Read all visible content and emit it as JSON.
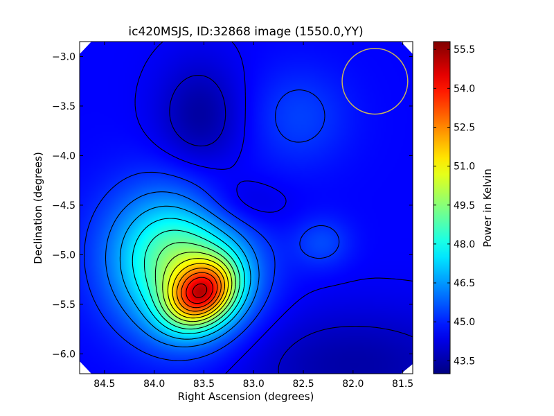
{
  "chart_data": {
    "type": "heatmap",
    "title": "ic420MSJS, ID:32868 image (1550.0,YY)",
    "xlabel": "Right Ascension (degrees)",
    "ylabel": "Declination (degrees)",
    "colorbar_label": "Power in Kelvin",
    "colormap": "jet",
    "xlim": [
      84.75,
      81.4
    ],
    "ylim": [
      -6.2,
      -2.85
    ],
    "x_ticks": [
      84.5,
      84.0,
      83.5,
      83.0,
      82.5,
      82.0,
      81.5
    ],
    "x_tick_labels": [
      "84.5",
      "84.0",
      "83.5",
      "83.0",
      "82.5",
      "82.0",
      "81.5"
    ],
    "y_ticks": [
      -3.0,
      -3.5,
      -4.0,
      -4.5,
      -5.0,
      -5.5,
      -6.0
    ],
    "y_tick_labels": [
      "−3.0",
      "−3.5",
      "−4.0",
      "−4.5",
      "−5.0",
      "−5.5",
      "−6.0"
    ],
    "colorbar_range": [
      43.0,
      55.8
    ],
    "colorbar_ticks": [
      43.5,
      45.0,
      46.5,
      48.0,
      49.5,
      51.0,
      52.5,
      54.0,
      55.5
    ],
    "colorbar_tick_labels": [
      "43.5",
      "45.0",
      "46.5",
      "48.0",
      "49.5",
      "51.0",
      "52.5",
      "54.0",
      "55.5"
    ],
    "background_level": 44.6,
    "sources": [
      {
        "ra": 83.52,
        "dec": -5.39,
        "peak": 55.7,
        "sigma_ra": 0.26,
        "sigma_dec": 0.2,
        "rotation_deg": -40
      },
      {
        "ra": 83.75,
        "dec": -5.1,
        "peak": 49.6,
        "sigma_ra": 0.45,
        "sigma_dec": 0.5,
        "rotation_deg": -30
      },
      {
        "ra": 82.32,
        "dec": -4.87,
        "peak": 0.9,
        "sigma_ra": 0.2,
        "sigma_dec": 0.18,
        "rotation_deg": 0
      },
      {
        "ra": 82.55,
        "dec": -3.6,
        "peak": 0.8,
        "sigma_ra": 0.35,
        "sigma_dec": 0.35,
        "rotation_deg": 0
      }
    ],
    "depressions": [
      {
        "ra": 83.55,
        "dec": -3.6,
        "depth": 1.2,
        "sigma_ra": 0.3,
        "sigma_dec": 0.4,
        "rotation_deg": 0
      },
      {
        "ra": 83.2,
        "dec": -4.5,
        "depth": 0.8,
        "sigma_ra": 0.35,
        "sigma_dec": 0.2,
        "rotation_deg": 0
      },
      {
        "ra": 82.0,
        "dec": -6.1,
        "depth": 1.1,
        "sigma_ra": 0.9,
        "sigma_dec": 0.4,
        "rotation_deg": 0
      }
    ],
    "contour_levels": [
      43.9,
      44.5,
      45.2,
      46.0,
      46.8,
      47.6,
      48.4,
      49.2,
      50.0,
      50.8,
      51.6,
      52.4,
      53.2,
      54.0,
      54.8
    ],
    "beam": {
      "ra": 81.78,
      "dec": -3.25,
      "radius_deg": 0.33,
      "color": "#c8b45a"
    },
    "grid": false,
    "legend": "none"
  }
}
